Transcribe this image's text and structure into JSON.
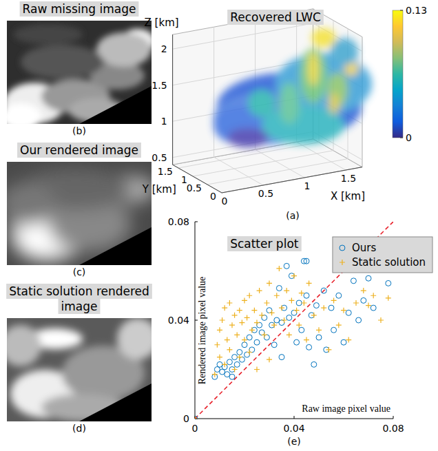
{
  "chart_data": {
    "type": "scatter",
    "title": "Scatter plot",
    "x_label": "Raw image pixel value",
    "y_label": "Rendered image pixel value",
    "panel_label": "(e)",
    "xlim": [
      0,
      0.08
    ],
    "ylim": [
      0,
      0.08
    ],
    "xticks": [
      0,
      0.04,
      0.08
    ],
    "yticks": [
      0,
      0.04,
      0.08
    ],
    "legend": "top-right",
    "series": [
      {
        "name": "Ours",
        "color": "#0072bd",
        "marker": "circle",
        "x": [
          0,
          0.008,
          0.009,
          0.01,
          0.011,
          0.012,
          0.013,
          0.014,
          0.015,
          0.016,
          0.017,
          0.018,
          0.019,
          0.02,
          0.021,
          0.022,
          0.023,
          0.024,
          0.025,
          0.026,
          0.027,
          0.028,
          0.029,
          0.03,
          0.031,
          0.032,
          0.033,
          0.034,
          0.035,
          0.036,
          0.037,
          0.038,
          0.039,
          0.04,
          0.041,
          0.042,
          0.043,
          0.044,
          0.045,
          0.046,
          0.047,
          0.048,
          0.049,
          0.05,
          0.052,
          0.053,
          0.055,
          0.056,
          0.058,
          0.06,
          0.062,
          0.064,
          0.066,
          0.068,
          0.07,
          0.072,
          0.078,
          0.035,
          0.045,
          0.015
        ],
        "values": [
          0,
          0.017,
          0.02,
          0.022,
          0.019,
          0.021,
          0.018,
          0.023,
          0.02,
          0.025,
          0.022,
          0.027,
          0.024,
          0.03,
          0.026,
          0.033,
          0.028,
          0.036,
          0.031,
          0.038,
          0.035,
          0.041,
          0.033,
          0.044,
          0.038,
          0.03,
          0.04,
          0.053,
          0.039,
          0.045,
          0.062,
          0.041,
          0.058,
          0.043,
          0.031,
          0.047,
          0.036,
          0.064,
          0.05,
          0.029,
          0.042,
          0.022,
          0.046,
          0.033,
          0.052,
          0.028,
          0.045,
          0.036,
          0.05,
          0.031,
          0.043,
          0.056,
          0.04,
          0.048,
          0.057,
          0.045,
          0.055,
          0.025,
          0.064,
          0.017
        ]
      },
      {
        "name": "Static solution",
        "color": "#edb120",
        "marker": "plus",
        "x": [
          0,
          0.008,
          0.009,
          0.01,
          0.01,
          0.011,
          0.012,
          0.012,
          0.013,
          0.014,
          0.014,
          0.015,
          0.016,
          0.016,
          0.017,
          0.018,
          0.018,
          0.019,
          0.02,
          0.02,
          0.021,
          0.022,
          0.022,
          0.023,
          0.024,
          0.025,
          0.026,
          0.027,
          0.028,
          0.029,
          0.03,
          0.031,
          0.032,
          0.033,
          0.034,
          0.035,
          0.036,
          0.037,
          0.038,
          0.039,
          0.04,
          0.041,
          0.042,
          0.043,
          0.044,
          0.045,
          0.046,
          0.048,
          0.05,
          0.052,
          0.054,
          0.056,
          0.058,
          0.06,
          0.062,
          0.065,
          0.068,
          0.07,
          0.072,
          0.075,
          0.078,
          0.03,
          0.025
        ],
        "values": [
          0,
          0.018,
          0.03,
          0.025,
          0.036,
          0.04,
          0.022,
          0.045,
          0.032,
          0.028,
          0.047,
          0.038,
          0.02,
          0.042,
          0.034,
          0.044,
          0.025,
          0.039,
          0.032,
          0.048,
          0.041,
          0.027,
          0.05,
          0.036,
          0.044,
          0.039,
          0.052,
          0.042,
          0.034,
          0.047,
          0.055,
          0.043,
          0.038,
          0.05,
          0.061,
          0.045,
          0.04,
          0.052,
          0.034,
          0.048,
          0.058,
          0.044,
          0.038,
          0.051,
          0.047,
          0.032,
          0.055,
          0.042,
          0.036,
          0.045,
          0.028,
          0.048,
          0.038,
          0.044,
          0.032,
          0.047,
          0.052,
          0.046,
          0.05,
          0.04,
          0.049,
          0.024,
          0.02
        ]
      }
    ]
  },
  "volume": {
    "title": "Recovered LWC",
    "panel_label": "(a)",
    "x_label": "X [km]",
    "y_label": "Y [km]",
    "z_label": "Z [km]",
    "xlim": [
      0,
      1.7
    ],
    "xticks": [
      0,
      0.5,
      1,
      1.5
    ],
    "ylim": [
      0,
      1.7
    ],
    "yticks": [
      0,
      0.5,
      1,
      1.5
    ],
    "zlim": [
      0.4,
      2.2
    ],
    "zticks": [
      0.5,
      1,
      1.5,
      2
    ],
    "colorbar": {
      "range": [
        0,
        0.13
      ],
      "ticks": [
        0,
        0.13
      ]
    }
  },
  "images": [
    {
      "title": "Raw missing image",
      "panel_label": "(b)"
    },
    {
      "title": "Our rendered image",
      "panel_label": "(c)"
    },
    {
      "title": "Static solution rendered image",
      "panel_label": "(d)"
    }
  ]
}
